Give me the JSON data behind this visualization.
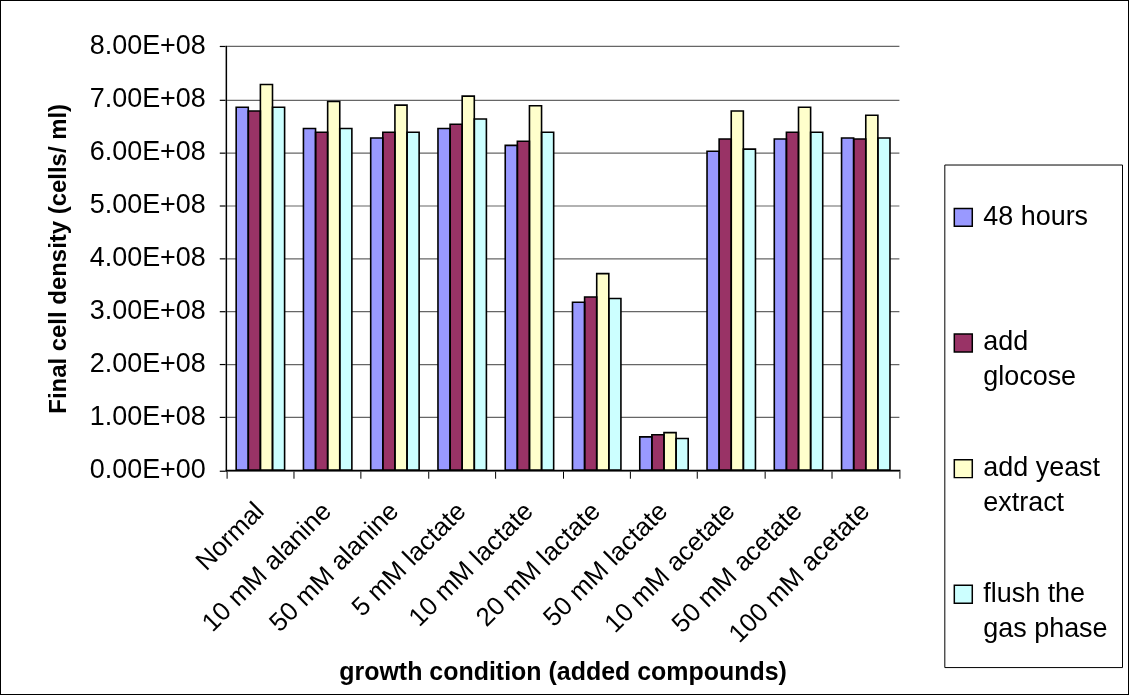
{
  "chart_data": {
    "type": "bar",
    "xlabel": "growth condition (added compounds)",
    "ylabel": "Final cell density (cells/ ml)",
    "categories": [
      "Normal",
      "10 mM alanine",
      "50 mM alanine",
      "5 mM lactate",
      "10 mM lactate",
      "20 mM lactate",
      "50 mM lactate",
      "10 mM acetate",
      "50 mM acetate",
      "100 mM acetate"
    ],
    "series": [
      {
        "name": "48 hours",
        "color": "#9999ff",
        "values": [
          686000000,
          646000000,
          628000000,
          646000000,
          614000000,
          318000000,
          64000000,
          603000000,
          626000000,
          628000000
        ]
      },
      {
        "name": "add glocose",
        "color": "#993366",
        "values": [
          679000000,
          639000000,
          639000000,
          654000000,
          622000000,
          328000000,
          68000000,
          626000000,
          639000000,
          626000000
        ]
      },
      {
        "name": "add yeast extract",
        "color": "#ffffcc",
        "values": [
          729000000,
          697000000,
          690000000,
          707000000,
          689000000,
          372000000,
          72000000,
          679000000,
          686000000,
          671000000
        ]
      },
      {
        "name": "flush the gas phase",
        "color": "#ccffff",
        "values": [
          686000000,
          646000000,
          639000000,
          664000000,
          639000000,
          325000000,
          61000000,
          607000000,
          639000000,
          628000000
        ]
      }
    ],
    "ylim": [
      0,
      800000000
    ],
    "yticks": [
      {
        "value": 0,
        "label": "0.00E+00"
      },
      {
        "value": 100000000,
        "label": "1.00E+08"
      },
      {
        "value": 200000000,
        "label": "2.00E+08"
      },
      {
        "value": 300000000,
        "label": "3.00E+08"
      },
      {
        "value": 400000000,
        "label": "4.00E+08"
      },
      {
        "value": 500000000,
        "label": "5.00E+08"
      },
      {
        "value": 600000000,
        "label": "6.00E+08"
      },
      {
        "value": 700000000,
        "label": "7.00E+08"
      },
      {
        "value": 800000000,
        "label": "8.00E+08"
      }
    ],
    "grid": "y",
    "legend": "right"
  }
}
